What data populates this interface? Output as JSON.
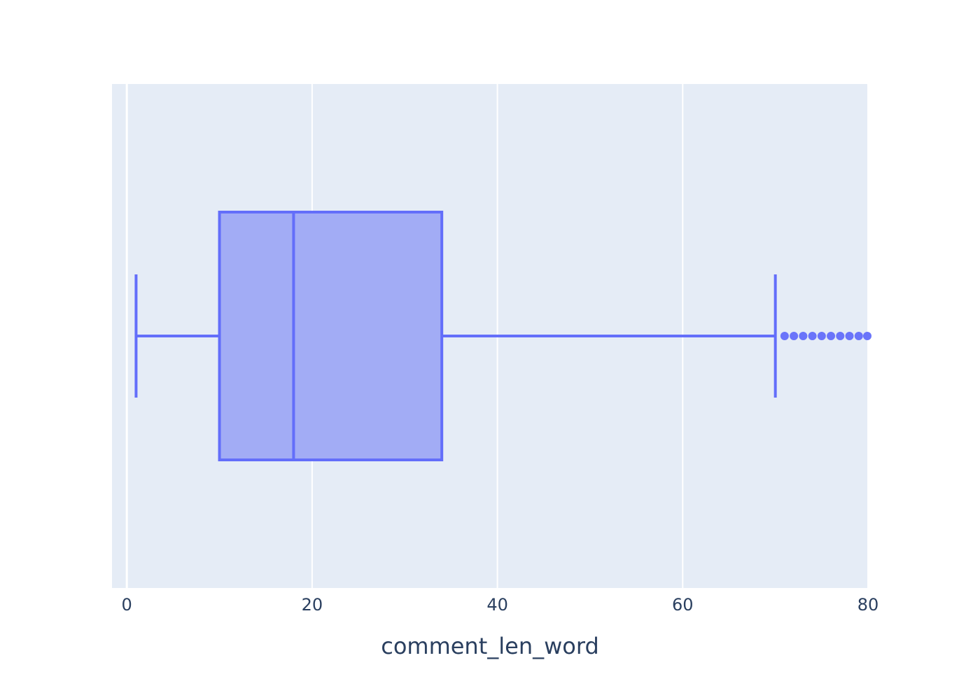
{
  "chart_data": {
    "type": "box",
    "orientation": "horizontal",
    "title": "",
    "xlabel": "comment_len_word",
    "ylabel": "",
    "xlim": [
      -1.6,
      80
    ],
    "x_ticks": [
      0,
      20,
      40,
      60,
      80
    ],
    "x_tick_labels": [
      "0",
      "20",
      "40",
      "60",
      "80"
    ],
    "grid": true,
    "legend": "none",
    "colors": {
      "plot_background": "#e5ecf6",
      "grid": "#ffffff",
      "box_line": "#636efa",
      "box_fill": "#a2acf5",
      "text": "#2a3f5f"
    },
    "series": [
      {
        "lower_fence": 1,
        "q1": 10,
        "median": 18,
        "q3": 34,
        "upper_fence": 70,
        "outliers": [
          71,
          72,
          73,
          74,
          75,
          76,
          77,
          78,
          79,
          80
        ]
      }
    ]
  }
}
